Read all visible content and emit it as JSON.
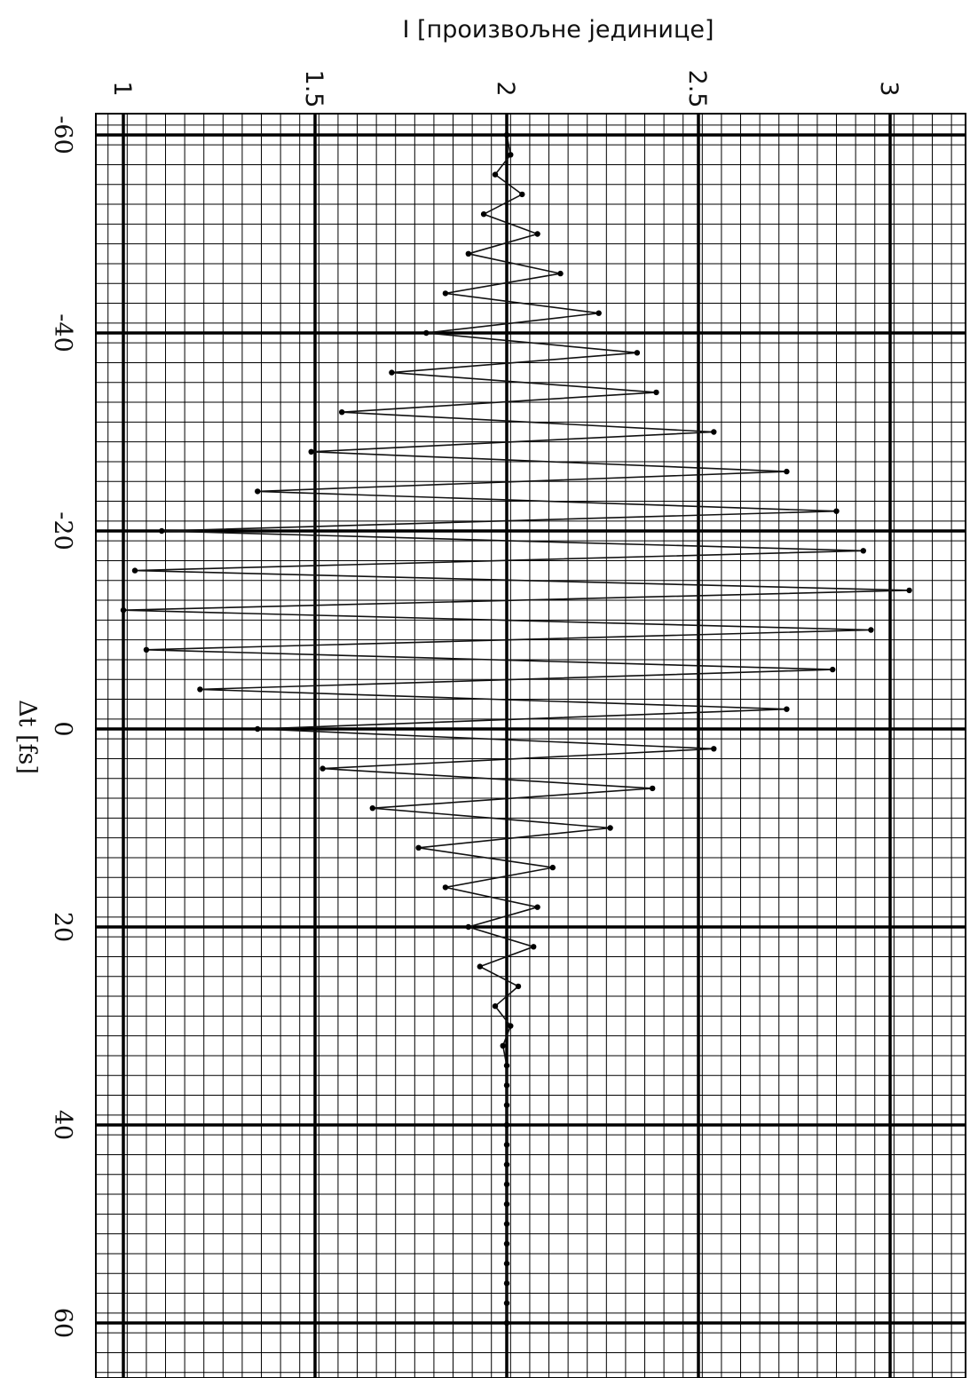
{
  "chart_data": {
    "type": "line",
    "title": "",
    "ylabel": "I [произвољне јединице]",
    "xlabel": "Δt [fs]",
    "xlim": [
      -60,
      60
    ],
    "ylim": [
      1,
      3
    ],
    "x_ticks": [
      "-60",
      "-40",
      "-20",
      "0",
      "20",
      "40",
      "60"
    ],
    "y_ticks": [
      "1",
      "1.5",
      "2",
      "2.5",
      "3"
    ],
    "grid": true,
    "legend": "none",
    "orientation": "rotated-90-clockwise",
    "series": [
      {
        "values_note": "",
        "x": [
          -60,
          -58,
          -56,
          -54,
          -52,
          -50,
          -48,
          -46,
          -44,
          -42,
          -40,
          -38,
          -36,
          -34,
          -32,
          -30,
          -28,
          -26,
          -24,
          -22,
          -20,
          -18,
          -16,
          -14,
          -12,
          -10,
          -8,
          -6,
          -4,
          -2,
          0,
          2,
          4,
          6,
          8,
          10,
          12,
          14,
          16,
          18,
          20,
          22,
          24,
          26,
          28,
          30,
          32,
          34,
          36,
          38,
          40,
          42,
          44,
          46,
          48,
          50,
          52,
          54,
          56,
          58,
          60
        ],
        "y": [
          2.0,
          2.01,
          1.97,
          2.04,
          1.94,
          2.08,
          1.9,
          2.14,
          1.84,
          2.24,
          1.79,
          2.34,
          1.7,
          2.39,
          1.57,
          2.54,
          1.49,
          2.73,
          1.35,
          2.86,
          1.1,
          2.93,
          1.03,
          3.05,
          1.0,
          2.95,
          1.06,
          2.85,
          1.2,
          2.73,
          1.35,
          2.54,
          1.52,
          2.38,
          1.65,
          2.27,
          1.77,
          2.12,
          1.84,
          2.08,
          1.9,
          2.07,
          1.93,
          2.03,
          1.97,
          2.01,
          1.99,
          2.0,
          2.0,
          2.0,
          2.0,
          2.0,
          2.0,
          2.0,
          2.0,
          2.0,
          2.0,
          2.0,
          2.0,
          2.0,
          2.0
        ]
      }
    ]
  }
}
